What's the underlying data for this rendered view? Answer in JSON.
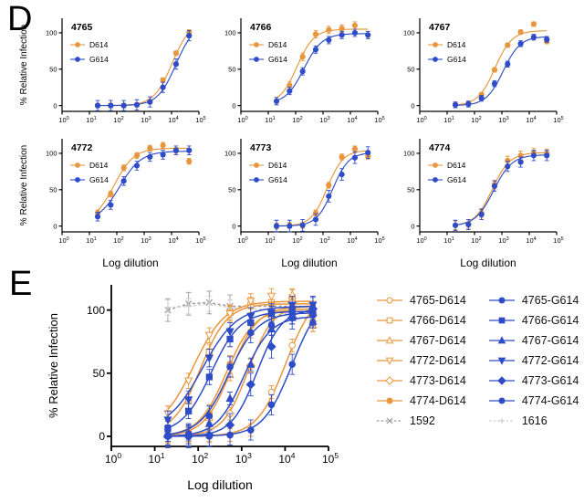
{
  "panel_labels": {
    "d": "D",
    "e": "E"
  },
  "axis": {
    "ylabel": "% Relative Infection",
    "xlabel": "Log dilution",
    "yticks": [
      0,
      50,
      100
    ],
    "x_tick_exponents": [
      0,
      1,
      2,
      3,
      4,
      5
    ]
  },
  "colors": {
    "d614_orange": "#E8963C",
    "g614_blue": "#2E4CC7",
    "control_1592_gray": "#9B9B9B",
    "control_1616_gray": "#CFCFCF",
    "axis_black": "#000000"
  },
  "chart_data": [
    {
      "panel": "D",
      "type": "line",
      "title": "4765",
      "show_ylabel": true,
      "show_xlabel": false,
      "xlabel": "Log dilution",
      "ylabel": "% Relative Infection",
      "xscale": "log",
      "xlim": [
        1,
        100000
      ],
      "ylim": [
        -8,
        120
      ],
      "yticks": [
        0,
        50,
        100
      ],
      "x_tick_exponents": [
        0,
        1,
        2,
        3,
        4,
        5
      ],
      "x": [
        20,
        60,
        180,
        540,
        1620,
        4860,
        14580,
        43740
      ],
      "series": [
        {
          "name": "D614",
          "color": "#E8963C",
          "marker": "circle",
          "open": false,
          "values": [
            0,
            0,
            0,
            1,
            5,
            35,
            72,
            101
          ],
          "err": 3,
          "fit": [
            0,
            116,
            4.02,
            1.3
          ]
        },
        {
          "name": "G614",
          "color": "#2E4CC7",
          "marker": "circle",
          "open": false,
          "values": [
            0,
            0,
            0,
            1,
            5,
            25,
            57,
            96
          ],
          "err": 7,
          "fit": [
            0,
            113,
            4.16,
            1.3
          ]
        }
      ]
    },
    {
      "panel": "D",
      "type": "line",
      "title": "4766",
      "show_ylabel": false,
      "show_xlabel": false,
      "xlabel": "Log dilution",
      "ylabel": "% Relative Infection",
      "xscale": "log",
      "xlim": [
        1,
        100000
      ],
      "ylim": [
        -8,
        120
      ],
      "yticks": [
        0,
        50,
        100
      ],
      "x_tick_exponents": [
        0,
        1,
        2,
        3,
        4,
        5
      ],
      "x": [
        20,
        60,
        180,
        540,
        1620,
        4860,
        14580,
        43740
      ],
      "series": [
        {
          "name": "D614",
          "color": "#E8963C",
          "marker": "circle",
          "open": false,
          "values": [
            6,
            28,
            67,
            98,
            104,
            106,
            110,
            97
          ],
          "err": 5,
          "fit": [
            2,
            105,
            2.05,
            1.4
          ]
        },
        {
          "name": "G614",
          "color": "#2E4CC7",
          "marker": "circle",
          "open": false,
          "values": [
            6,
            20,
            47,
            77,
            90,
            97,
            100,
            97
          ],
          "err": 5,
          "fit": [
            2,
            99,
            2.3,
            1.3
          ]
        }
      ]
    },
    {
      "panel": "D",
      "type": "line",
      "title": "4767",
      "show_ylabel": false,
      "show_xlabel": false,
      "xlabel": "Log dilution",
      "ylabel": "% Relative Infection",
      "xscale": "log",
      "xlim": [
        1,
        100000
      ],
      "ylim": [
        -8,
        120
      ],
      "yticks": [
        0,
        50,
        100
      ],
      "x_tick_exponents": [
        0,
        1,
        2,
        3,
        4,
        5
      ],
      "x": [
        20,
        60,
        180,
        540,
        1620,
        4860,
        14580,
        43740
      ],
      "series": [
        {
          "name": "D614",
          "color": "#E8963C",
          "marker": "circle",
          "open": false,
          "values": [
            1,
            3,
            15,
            49,
            83,
            101,
            112,
            88
          ],
          "err": 3,
          "fit": [
            0,
            103,
            2.75,
            1.4
          ]
        },
        {
          "name": "G614",
          "color": "#2E4CC7",
          "marker": "circle",
          "open": false,
          "values": [
            1,
            2,
            10,
            30,
            57,
            85,
            94,
            91
          ],
          "err": 4,
          "fit": [
            0,
            95,
            3.05,
            1.4
          ]
        }
      ]
    },
    {
      "panel": "D",
      "type": "line",
      "title": "4772",
      "show_ylabel": true,
      "show_xlabel": true,
      "xlabel": "Log dilution",
      "ylabel": "% Relative Infection",
      "xscale": "log",
      "xlim": [
        1,
        100000
      ],
      "ylim": [
        -8,
        120
      ],
      "yticks": [
        0,
        50,
        100
      ],
      "x_tick_exponents": [
        0,
        1,
        2,
        3,
        4,
        5
      ],
      "x": [
        20,
        60,
        180,
        540,
        1620,
        4860,
        14580,
        43740
      ],
      "series": [
        {
          "name": "D614",
          "color": "#E8963C",
          "marker": "circle",
          "open": false,
          "values": [
            18,
            44,
            80,
            97,
            107,
            111,
            104,
            89
          ],
          "err": 4,
          "fit": [
            5,
            107,
            1.9,
            1.2
          ]
        },
        {
          "name": "G614",
          "color": "#2E4CC7",
          "marker": "circle",
          "open": false,
          "values": [
            13,
            29,
            62,
            83,
            95,
            98,
            104,
            104
          ],
          "err": 6,
          "fit": [
            5,
            103,
            2.1,
            1.1
          ]
        }
      ]
    },
    {
      "panel": "D",
      "type": "line",
      "title": "4773",
      "show_ylabel": false,
      "show_xlabel": true,
      "xlabel": "Log dilution",
      "ylabel": "% Relative Infection",
      "xscale": "log",
      "xlim": [
        1,
        100000
      ],
      "ylim": [
        -8,
        120
      ],
      "yticks": [
        0,
        50,
        100
      ],
      "x_tick_exponents": [
        0,
        1,
        2,
        3,
        4,
        5
      ],
      "x": [
        20,
        60,
        180,
        540,
        1620,
        4860,
        14580,
        43740
      ],
      "series": [
        {
          "name": "D614",
          "color": "#E8963C",
          "marker": "circle",
          "open": false,
          "values": [
            0,
            1,
            1,
            18,
            56,
            95,
            106,
            96
          ],
          "err": 4,
          "fit": [
            0,
            104,
            3.15,
            1.5
          ]
        },
        {
          "name": "G614",
          "color": "#2E4CC7",
          "marker": "circle",
          "open": false,
          "values": [
            0,
            0,
            1,
            9,
            41,
            71,
            94,
            101
          ],
          "err": 8,
          "fit": [
            0,
            101,
            3.35,
            1.5
          ]
        }
      ]
    },
    {
      "panel": "D",
      "type": "line",
      "title": "4774",
      "show_ylabel": false,
      "show_xlabel": true,
      "xlabel": "Log dilution",
      "ylabel": "% Relative Infection",
      "xscale": "log",
      "xlim": [
        1,
        100000
      ],
      "ylim": [
        -8,
        120
      ],
      "yticks": [
        0,
        50,
        100
      ],
      "x_tick_exponents": [
        0,
        1,
        2,
        3,
        4,
        5
      ],
      "x": [
        20,
        60,
        180,
        540,
        1620,
        4860,
        14580,
        43740
      ],
      "series": [
        {
          "name": "D614",
          "color": "#E8963C",
          "marker": "circle",
          "open": false,
          "values": [
            1,
            3,
            18,
            57,
            90,
            97,
            101,
            100
          ],
          "err": 6,
          "fit": [
            0,
            101,
            2.65,
            1.35
          ]
        },
        {
          "name": "G614",
          "color": "#2E4CC7",
          "marker": "circle",
          "open": false,
          "values": [
            1,
            2,
            16,
            55,
            82,
            88,
            97,
            97
          ],
          "err": 7,
          "fit": [
            0,
            98,
            2.7,
            1.3
          ]
        }
      ]
    },
    {
      "panel": "E",
      "type": "line",
      "title": "",
      "show_ylabel": true,
      "show_xlabel": true,
      "xlabel": "Log dilution",
      "ylabel": "% Relative Infection",
      "xscale": "log",
      "xlim": [
        1,
        100000
      ],
      "ylim": [
        -8,
        120
      ],
      "yticks": [
        0,
        50,
        100
      ],
      "x_tick_exponents": [
        0,
        1,
        2,
        3,
        4,
        5
      ],
      "x": [
        20,
        60,
        180,
        540,
        1620,
        4860,
        14580,
        43740
      ],
      "series": [
        {
          "name": "1592",
          "color": "#9B9B9B",
          "marker": "x",
          "open": true,
          "dashed": true,
          "values": [
            100,
            105,
            106,
            103,
            103,
            103,
            103,
            103
          ],
          "err": 9,
          "marker_count": 4
        },
        {
          "name": "1616",
          "color": "#CFCFCF",
          "marker": "plus",
          "open": true,
          "dashed": true,
          "values": [
            102,
            103,
            105,
            102,
            101,
            100,
            96,
            91
          ],
          "err": 6,
          "marker_count": 4
        },
        {
          "name": "4765-D614",
          "color": "#E8963C",
          "marker": "circle",
          "open": true,
          "values": [
            0,
            0,
            0,
            1,
            5,
            35,
            72,
            101
          ],
          "err": 5,
          "fit": [
            0,
            116,
            4.02,
            1.3
          ]
        },
        {
          "name": "4766-D614",
          "color": "#E8963C",
          "marker": "square",
          "open": true,
          "values": [
            6,
            28,
            67,
            98,
            104,
            106,
            110,
            97
          ],
          "err": 6,
          "fit": [
            2,
            105,
            2.05,
            1.4
          ]
        },
        {
          "name": "4767-D614",
          "color": "#E8963C",
          "marker": "triangle",
          "open": true,
          "values": [
            1,
            3,
            15,
            49,
            83,
            101,
            112,
            88
          ],
          "err": 5,
          "fit": [
            0,
            103,
            2.75,
            1.4
          ]
        },
        {
          "name": "4772-D614",
          "color": "#E8963C",
          "marker": "triangle-down",
          "open": true,
          "values": [
            18,
            44,
            80,
            97,
            107,
            111,
            104,
            89
          ],
          "err": 6,
          "fit": [
            5,
            107,
            1.9,
            1.2
          ]
        },
        {
          "name": "4773-D614",
          "color": "#E8963C",
          "marker": "diamond",
          "open": true,
          "values": [
            0,
            1,
            1,
            18,
            56,
            95,
            106,
            96
          ],
          "err": 5,
          "fit": [
            0,
            104,
            3.15,
            1.5
          ]
        },
        {
          "name": "4774-D614",
          "color": "#E8963C",
          "marker": "circle",
          "open": false,
          "values": [
            1,
            3,
            18,
            57,
            90,
            97,
            101,
            100
          ],
          "err": 7,
          "fit": [
            0,
            101,
            2.65,
            1.35
          ]
        },
        {
          "name": "4765-G614",
          "color": "#2E4CC7",
          "marker": "circle",
          "open": false,
          "values": [
            0,
            0,
            0,
            1,
            5,
            25,
            57,
            96
          ],
          "err": 8,
          "fit": [
            0,
            113,
            4.16,
            1.3
          ]
        },
        {
          "name": "4766-G614",
          "color": "#2E4CC7",
          "marker": "square",
          "open": false,
          "values": [
            6,
            20,
            47,
            77,
            90,
            97,
            100,
            97
          ],
          "err": 6,
          "fit": [
            2,
            99,
            2.3,
            1.3
          ]
        },
        {
          "name": "4767-G614",
          "color": "#2E4CC7",
          "marker": "triangle",
          "open": false,
          "values": [
            1,
            2,
            10,
            30,
            57,
            85,
            94,
            91
          ],
          "err": 5,
          "fit": [
            0,
            95,
            3.05,
            1.4
          ]
        },
        {
          "name": "4772-G614",
          "color": "#2E4CC7",
          "marker": "triangle-down",
          "open": false,
          "values": [
            13,
            29,
            62,
            83,
            95,
            98,
            104,
            104
          ],
          "err": 7,
          "fit": [
            5,
            103,
            2.1,
            1.1
          ]
        },
        {
          "name": "4773-G614",
          "color": "#2E4CC7",
          "marker": "diamond",
          "open": false,
          "values": [
            0,
            0,
            1,
            9,
            41,
            71,
            94,
            101
          ],
          "err": 9,
          "fit": [
            0,
            101,
            3.35,
            1.5
          ]
        },
        {
          "name": "4774-G614",
          "color": "#2E4CC7",
          "marker": "circle",
          "open": false,
          "values": [
            1,
            2,
            16,
            55,
            82,
            88,
            97,
            97
          ],
          "err": 8,
          "fit": [
            0,
            98,
            2.7,
            1.3
          ]
        }
      ]
    }
  ],
  "e_legend": {
    "left": [
      {
        "label": "4765-D614",
        "marker": "circle",
        "open": true,
        "dashed": false,
        "color": "#E8963C"
      },
      {
        "label": "4766-D614",
        "marker": "square",
        "open": true,
        "dashed": false,
        "color": "#E8963C"
      },
      {
        "label": "4767-D614",
        "marker": "triangle",
        "open": true,
        "dashed": false,
        "color": "#E8963C"
      },
      {
        "label": "4772-D614",
        "marker": "triangle-down",
        "open": true,
        "dashed": false,
        "color": "#E8963C"
      },
      {
        "label": "4773-D614",
        "marker": "diamond",
        "open": true,
        "dashed": false,
        "color": "#E8963C"
      },
      {
        "label": "4774-D614",
        "marker": "circle",
        "open": false,
        "dashed": false,
        "color": "#E8963C"
      },
      {
        "label": "1592",
        "marker": "x",
        "open": true,
        "dashed": true,
        "color": "#9B9B9B"
      }
    ],
    "right": [
      {
        "label": "4765-G614",
        "marker": "circle",
        "open": false,
        "dashed": false,
        "color": "#2E4CC7"
      },
      {
        "label": "4766-G614",
        "marker": "square",
        "open": false,
        "dashed": false,
        "color": "#2E4CC7"
      },
      {
        "label": "4767-G614",
        "marker": "triangle",
        "open": false,
        "dashed": false,
        "color": "#2E4CC7"
      },
      {
        "label": "4772-G614",
        "marker": "triangle-down",
        "open": false,
        "dashed": false,
        "color": "#2E4CC7"
      },
      {
        "label": "4773-G614",
        "marker": "diamond",
        "open": false,
        "dashed": false,
        "color": "#2E4CC7"
      },
      {
        "label": "4774-G614",
        "marker": "circle",
        "open": false,
        "dashed": false,
        "color": "#2E4CC7"
      },
      {
        "label": "1616",
        "marker": "plus",
        "open": true,
        "dashed": true,
        "color": "#CFCFCF"
      }
    ]
  }
}
